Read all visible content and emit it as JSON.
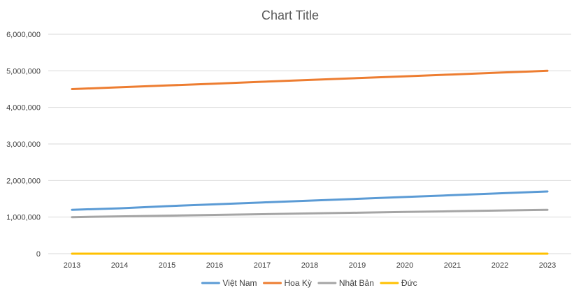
{
  "chart_data": {
    "type": "line",
    "title": "Chart Title",
    "xlabel": "",
    "ylabel": "",
    "categories": [
      "2013",
      "2014",
      "2015",
      "2016",
      "2017",
      "2018",
      "2019",
      "2020",
      "2021",
      "2022",
      "2023"
    ],
    "ylim": [
      0,
      6000000
    ],
    "yticks": [
      "0",
      "1,000,000",
      "2,000,000",
      "3,000,000",
      "4,000,000",
      "5,000,000",
      "6,000,000"
    ],
    "grid": true,
    "legend_position": "bottom",
    "series": [
      {
        "name": "Việt Nam",
        "color": "#5b9bd5",
        "values": [
          1200000,
          1240000,
          1300000,
          1350000,
          1400000,
          1450000,
          1500000,
          1550000,
          1600000,
          1650000,
          1700000
        ]
      },
      {
        "name": "Hoa Kỳ",
        "color": "#ed7d31",
        "values": [
          4500000,
          4550000,
          4600000,
          4650000,
          4700000,
          4750000,
          4800000,
          4850000,
          4900000,
          4950000,
          5000000
        ]
      },
      {
        "name": "Nhật Bản",
        "color": "#a5a5a5",
        "values": [
          1000000,
          1020000,
          1040000,
          1060000,
          1080000,
          1100000,
          1120000,
          1140000,
          1160000,
          1180000,
          1200000
        ]
      },
      {
        "name": "Đức",
        "color": "#ffc000",
        "values": [
          0,
          0,
          0,
          0,
          0,
          0,
          0,
          0,
          0,
          0,
          0
        ]
      }
    ]
  }
}
